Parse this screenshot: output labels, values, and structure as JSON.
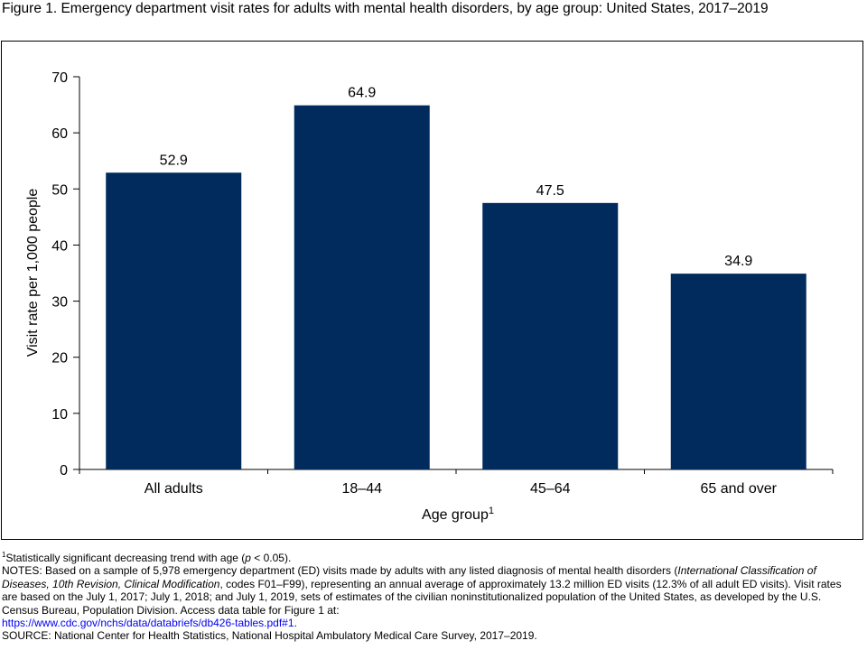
{
  "figure": {
    "title": "Figure 1. Emergency department visit rates for adults with mental health disorders, by age group: United States, 2017–2019"
  },
  "chart_data": {
    "type": "bar",
    "categories": [
      "All adults",
      "18–44",
      "45–64",
      "65 and over"
    ],
    "values": [
      52.9,
      64.9,
      47.5,
      34.9
    ],
    "value_labels": [
      "52.9",
      "64.9",
      "47.5",
      "34.9"
    ],
    "xlabel": "Age group",
    "xlabel_superscript": "1",
    "ylabel": "Visit rate per 1,000 people",
    "ylim": [
      0,
      70
    ],
    "yticks": [
      0,
      10,
      20,
      30,
      40,
      50,
      60,
      70
    ],
    "bar_color": "#002b5c",
    "grid": false,
    "legend": "none"
  },
  "footnotes": {
    "footnote_marker": "1",
    "footnote_text": "Statistically significant decreasing trend with age (",
    "footnote_p": "p",
    "footnote_tail": " < 0.05).",
    "notes_part1": "NOTES: Based on a sample of 5,978 emergency department (ED) visits made by adults with any listed diagnosis of mental health disorders (",
    "notes_italic": "International Classification of Diseases, 10th Revision, Clinical Modification",
    "notes_part2": ", codes F01–F99), representing an annual average of approximately 13.2 million ED visits (12.3% of all adult ED visits). Visit rates are based on the July 1, 2017; July 1, 2018; and July 1, 2019, sets of estimates of the civilian noninstitutionalized population of the United States, as developed by the U.S. Census Bureau, Population Division. Access data table for Figure 1 at:",
    "link_text": "https://www.cdc.gov/nchs/data/databriefs/db426-tables.pdf#1",
    "link_tail": ".",
    "source": "SOURCE: National Center for Health Statistics, National Hospital Ambulatory Medical Care Survey, 2017–2019."
  }
}
